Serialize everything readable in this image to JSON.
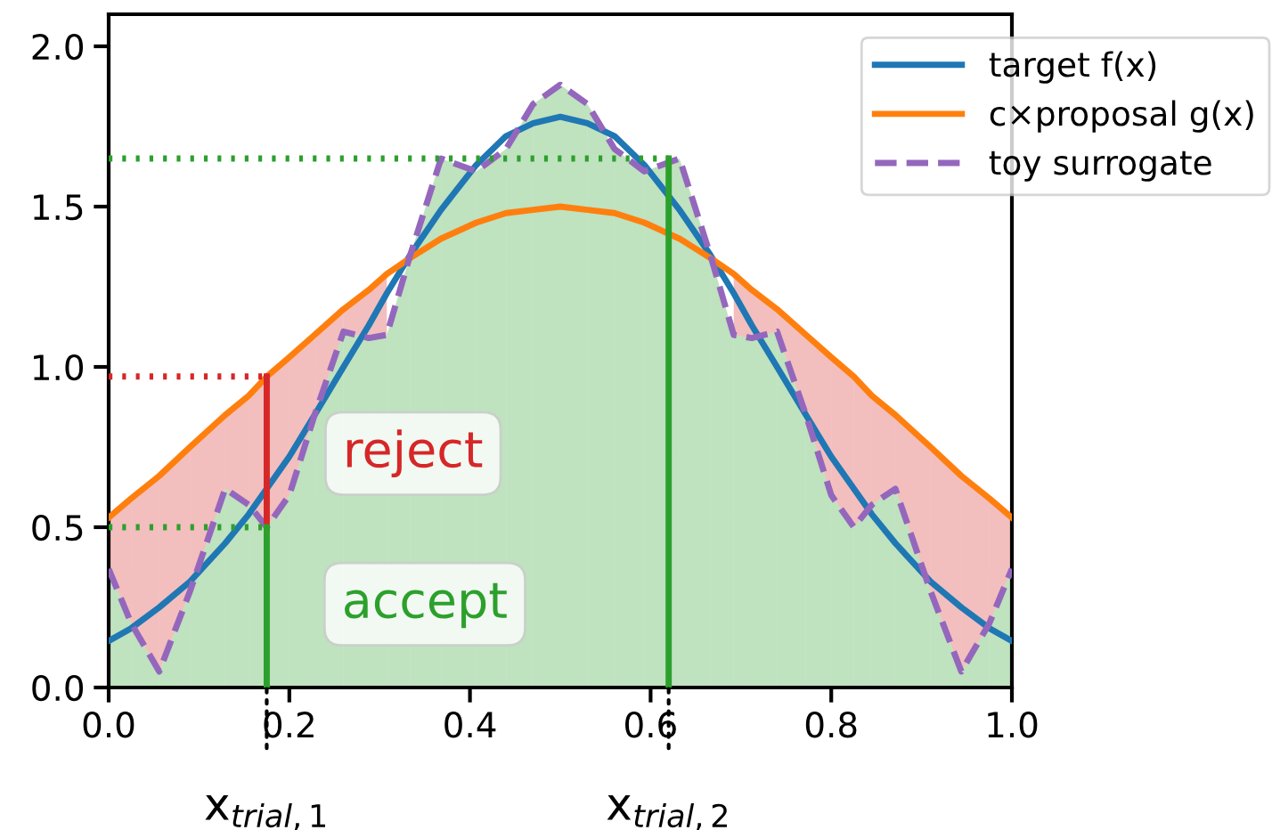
{
  "chart_data": {
    "type": "line",
    "x": [
      0,
      0.025,
      0.056,
      0.09,
      0.129,
      0.155,
      0.175,
      0.2,
      0.228,
      0.26,
      0.288,
      0.308,
      0.334,
      0.368,
      0.407,
      0.44,
      0.47,
      0.5,
      0.53,
      0.56,
      0.593,
      0.632,
      0.666,
      0.692,
      0.712,
      0.74,
      0.772,
      0.8,
      0.825,
      0.845,
      0.871,
      0.91,
      0.944,
      0.975,
      1.0
    ],
    "series": [
      {
        "name": "target f(x)",
        "color": "#1f77b4",
        "values": [
          0.145,
          0.185,
          0.25,
          0.33,
          0.45,
          0.54,
          0.62,
          0.72,
          0.85,
          1.0,
          1.13,
          1.23,
          1.35,
          1.49,
          1.63,
          1.72,
          1.76,
          1.78,
          1.76,
          1.72,
          1.63,
          1.49,
          1.35,
          1.23,
          1.13,
          1.0,
          0.85,
          0.72,
          0.62,
          0.54,
          0.45,
          0.33,
          0.25,
          0.185,
          0.145
        ]
      },
      {
        "name": "c×proposal g(x)",
        "color": "#ff7f0e",
        "colors": [
          "#d62728",
          "#d62728",
          "#d62728",
          "#d62728",
          "#d62728",
          "#d62728",
          "#d62728",
          "#d62728",
          "#d62728",
          "#d62728",
          "#d62728",
          "#d62728",
          "#d62728",
          "#d62728",
          "#d62728",
          "#d62728",
          "#d62728",
          "#d62728",
          "#d62728",
          "#d62728",
          "#d62728",
          "#d62728",
          "#d62728",
          "#d62728",
          "#d62728",
          "#d62728",
          "#d62728",
          "#d62728",
          "#d62728",
          "#d62728",
          "#d62728",
          "#d62728",
          "#d62728",
          "#d62728",
          "#d62728"
        ],
        "values": [
          0.53,
          0.59,
          0.66,
          0.75,
          0.85,
          0.91,
          0.97,
          1.03,
          1.1,
          1.18,
          1.24,
          1.29,
          1.34,
          1.4,
          1.45,
          1.48,
          1.49,
          1.5,
          1.49,
          1.48,
          1.45,
          1.4,
          1.34,
          1.29,
          1.24,
          1.18,
          1.1,
          1.03,
          0.97,
          0.91,
          0.85,
          0.75,
          0.66,
          0.59,
          0.53
        ],
        "lower": [
          0.37,
          0.2,
          0.05,
          0.3,
          0.62,
          0.57,
          0.5,
          0.6,
          0.85,
          1.11,
          1.09,
          1.1,
          null,
          null,
          null,
          null,
          null,
          null,
          null,
          null,
          null,
          null,
          null,
          1.1,
          1.09,
          1.11,
          0.85,
          0.6,
          0.5,
          0.57,
          0.62,
          0.3,
          0.05,
          0.2,
          0.37
        ],
        "upper": [
          0.53,
          0.59,
          0.66,
          0.75,
          0.85,
          0.91,
          0.97,
          1.03,
          1.1,
          1.18,
          1.24,
          1.29,
          null,
          null,
          null,
          null,
          null,
          null,
          null,
          null,
          null,
          null,
          null,
          1.29,
          1.24,
          1.18,
          1.1,
          1.03,
          0.97,
          0.91,
          0.85,
          0.75,
          0.66,
          0.59,
          0.53
        ]
      },
      {
        "type": "area",
        "name": "toy surrogate",
        "color": "#9467bd",
        "colors": [
          "#2ca02c",
          "#2ca02c",
          "#2ca02c",
          "#2ca02c",
          "#2ca02c",
          "#2ca02c",
          "#2ca02c",
          "#2ca02c",
          "#2ca02c",
          "#2ca02c",
          "#2ca02c",
          "#2ca02c",
          "#2ca02c",
          "#2ca02c",
          "#2ca02c",
          "#2ca02c",
          "#2ca02c",
          "#2ca02c",
          "#2ca02c",
          "#2ca02c",
          "#2ca02c",
          "#2ca02c",
          "#2ca02c",
          "#2ca02c",
          "#2ca02c",
          "#2ca02c",
          "#2ca02c",
          "#2ca02c",
          "#2ca02c",
          "#2ca02c",
          "#2ca02c",
          "#2ca02c",
          "#2ca02c",
          "#2ca02c",
          "#2ca02c"
        ],
        "line_style": "dashed",
        "values": [
          0.37,
          0.2,
          0.05,
          0.3,
          0.62,
          0.57,
          0.5,
          0.6,
          0.85,
          1.11,
          1.09,
          1.1,
          1.35,
          1.65,
          1.61,
          1.68,
          1.82,
          1.88,
          1.82,
          1.68,
          1.61,
          1.65,
          1.35,
          1.1,
          1.09,
          1.11,
          0.85,
          0.6,
          0.5,
          0.57,
          0.62,
          0.3,
          0.05,
          0.2,
          0.37
        ]
      },
      {
        "x": [
          0,
          0.175
        ],
        "values": [
          0.97,
          0.97
        ],
        "color": "#d62728",
        "line_style": "dotted"
      },
      {
        "x": [
          0,
          0.175
        ],
        "values": [
          0.5,
          0.5
        ],
        "color": "#2ca02c",
        "line_style": "dotted"
      },
      {
        "x": [
          0,
          0.62
        ],
        "values": [
          1.65,
          1.65
        ],
        "color": "#2ca02c",
        "line_style": "dotted"
      },
      {
        "x": [
          0.175,
          0.175
        ],
        "values": [
          0.5,
          0.97
        ],
        "color": "#d62728"
      },
      {
        "x": [
          0.175,
          0.175
        ],
        "values": [
          0,
          0.5
        ],
        "color": "#2ca02c"
      },
      {
        "x": [
          0.62,
          0.62
        ],
        "values": [
          0,
          1.65
        ],
        "color": "#2ca02c"
      }
    ],
    "annotations": [
      "reject",
      "accept",
      {
        "text": "x$_{trial,1}$",
        "x": 0.175,
        "y": 0
      },
      {
        "text": "x$_{trial,2}$",
        "x": 0.62,
        "y": 0
      }
    ],
    "xlim": [
      0,
      1
    ],
    "ylim": [
      0,
      2.1
    ],
    "xticks": [
      {
        "value": 0,
        "label": "0.0"
      },
      {
        "value": 0.2,
        "label": "0.2"
      },
      {
        "value": 0.4,
        "label": "0.4"
      },
      {
        "value": 0.6,
        "label": "0.6"
      },
      {
        "value": 0.8,
        "label": "0.8"
      },
      {
        "value": 1,
        "label": "1.0"
      }
    ],
    "yticks": [
      {
        "value": 0,
        "label": "0.0"
      },
      {
        "value": 0.5,
        "label": "0.5"
      },
      {
        "value": 1,
        "label": "1.0"
      },
      {
        "value": 1.5,
        "label": "1.5"
      },
      {
        "value": 2,
        "label": "2.0"
      }
    ],
    "legend": "top right"
  }
}
